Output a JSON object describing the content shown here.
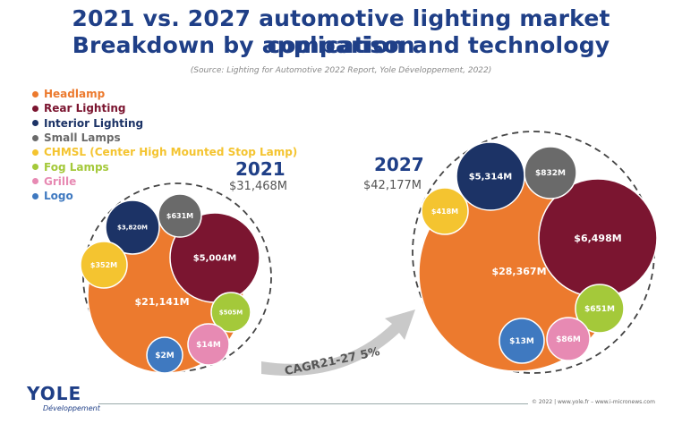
{
  "title_line1": "2021 vs. 2027 automotive lighting market comparison",
  "title_line2": "Breakdown by application and technology",
  "source": "(Source: Lighting for Automotive 2022 Report, Yole Développement, 2022)",
  "legend": [
    {
      "label": "Headlamp",
      "color": "#ec7a2e"
    },
    {
      "label": "Rear Lighting",
      "color": "#7b1530"
    },
    {
      "label": "Interior Lighting",
      "color": "#1c3366"
    },
    {
      "label": "Small Lamps",
      "color": "#6a6a6a"
    },
    {
      "label": "CHMSL (Center High Mounted Stop Lamp)",
      "color": "#f4c430"
    },
    {
      "label": "Fog Lamps",
      "color": "#a4c93a"
    },
    {
      "label": "Grille",
      "color": "#e78ab3"
    },
    {
      "label": "Logo",
      "color": "#3f79c0"
    }
  ],
  "chart_data": {
    "type": "bubble",
    "unit": "$M",
    "annotation": "CAGR21-27 5%",
    "years": [
      {
        "year": "2021",
        "total": "$31,468M",
        "segments": [
          {
            "category": "Headlamp",
            "value": 21141,
            "label": "$21,141M"
          },
          {
            "category": "Rear Lighting",
            "value": 5004,
            "label": "$5,004M"
          },
          {
            "category": "Interior Lighting",
            "value": 3820,
            "label": "$3,820M"
          },
          {
            "category": "Small Lamps",
            "value": 631,
            "label": "$631M"
          },
          {
            "category": "CHMSL (Center High Mounted Stop Lamp)",
            "value": 352,
            "label": "$352M"
          },
          {
            "category": "Fog Lamps",
            "value": 505,
            "label": "$505M"
          },
          {
            "category": "Grille",
            "value": 14,
            "label": "$14M"
          },
          {
            "category": "Logo",
            "value": 2,
            "label": "$2M"
          }
        ]
      },
      {
        "year": "2027",
        "total": "$42,177M",
        "segments": [
          {
            "category": "Headlamp",
            "value": 28367,
            "label": "$28,367M"
          },
          {
            "category": "Rear Lighting",
            "value": 6498,
            "label": "$6,498M"
          },
          {
            "category": "Interior Lighting",
            "value": 5314,
            "label": "$5,314M"
          },
          {
            "category": "Small Lamps",
            "value": 832,
            "label": "$832M"
          },
          {
            "category": "CHMSL (Center High Mounted Stop Lamp)",
            "value": 418,
            "label": "$418M"
          },
          {
            "category": "Fog Lamps",
            "value": 651,
            "label": "$651M"
          },
          {
            "category": "Grille",
            "value": 86,
            "label": "$86M"
          },
          {
            "category": "Logo",
            "value": 13,
            "label": "$13M"
          }
        ]
      }
    ]
  },
  "footer": {
    "logo": "YOLE",
    "logo_sub": "Développement",
    "right_text": "© 2022 | www.yole.fr – www.i-micronews.com"
  }
}
